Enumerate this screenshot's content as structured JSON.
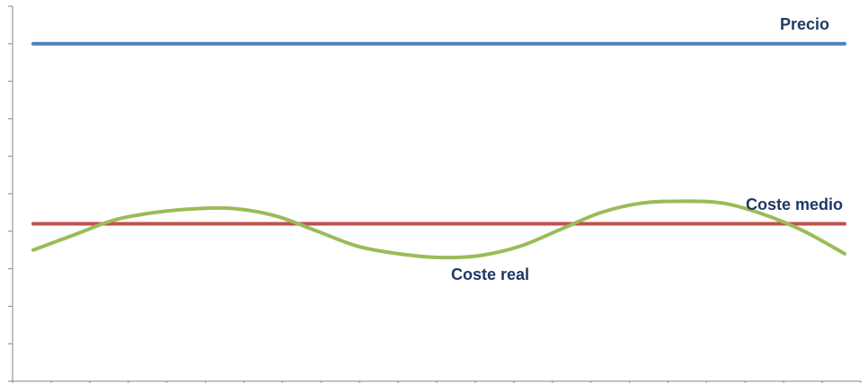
{
  "chart_data": {
    "type": "line",
    "title": "",
    "xlabel": "",
    "ylabel": "",
    "x": [
      0,
      1,
      2,
      3,
      4,
      5,
      6,
      7,
      8,
      9,
      10,
      11,
      12,
      13,
      14,
      15,
      16,
      17,
      18,
      19,
      20
    ],
    "ylim": [
      0,
      10
    ],
    "grid": false,
    "legend": "none",
    "series": [
      {
        "name": "Precio",
        "color": "#4f81bd",
        "values": [
          9,
          9,
          9,
          9,
          9,
          9,
          9,
          9,
          9,
          9,
          9,
          9,
          9,
          9,
          9,
          9,
          9,
          9,
          9,
          9,
          9
        ]
      },
      {
        "name": "Coste medio",
        "color": "#c0504d",
        "values": [
          4.2,
          4.2,
          4.2,
          4.2,
          4.2,
          4.2,
          4.2,
          4.2,
          4.2,
          4.2,
          4.2,
          4.2,
          4.2,
          4.2,
          4.2,
          4.2,
          4.2,
          4.2,
          4.2,
          4.2,
          4.2
        ]
      },
      {
        "name": "Coste real",
        "color": "#9bbb59",
        "x": [
          0,
          1,
          2,
          3,
          4,
          5,
          6,
          7,
          8,
          9,
          10,
          11,
          12,
          13,
          14,
          15,
          16,
          17,
          18,
          19,
          20
        ],
        "values": [
          3.5,
          3.9,
          4.3,
          4.5,
          4.6,
          4.6,
          4.4,
          4.0,
          3.6,
          3.4,
          3.3,
          3.35,
          3.6,
          4.05,
          4.5,
          4.75,
          4.8,
          4.75,
          4.45,
          4.0,
          3.4
        ]
      }
    ],
    "annotations": [
      {
        "text": "Precio",
        "series": "Precio"
      },
      {
        "text": "Coste medio",
        "series": "Coste medio"
      },
      {
        "text": "Coste real",
        "series": "Coste real"
      }
    ]
  }
}
